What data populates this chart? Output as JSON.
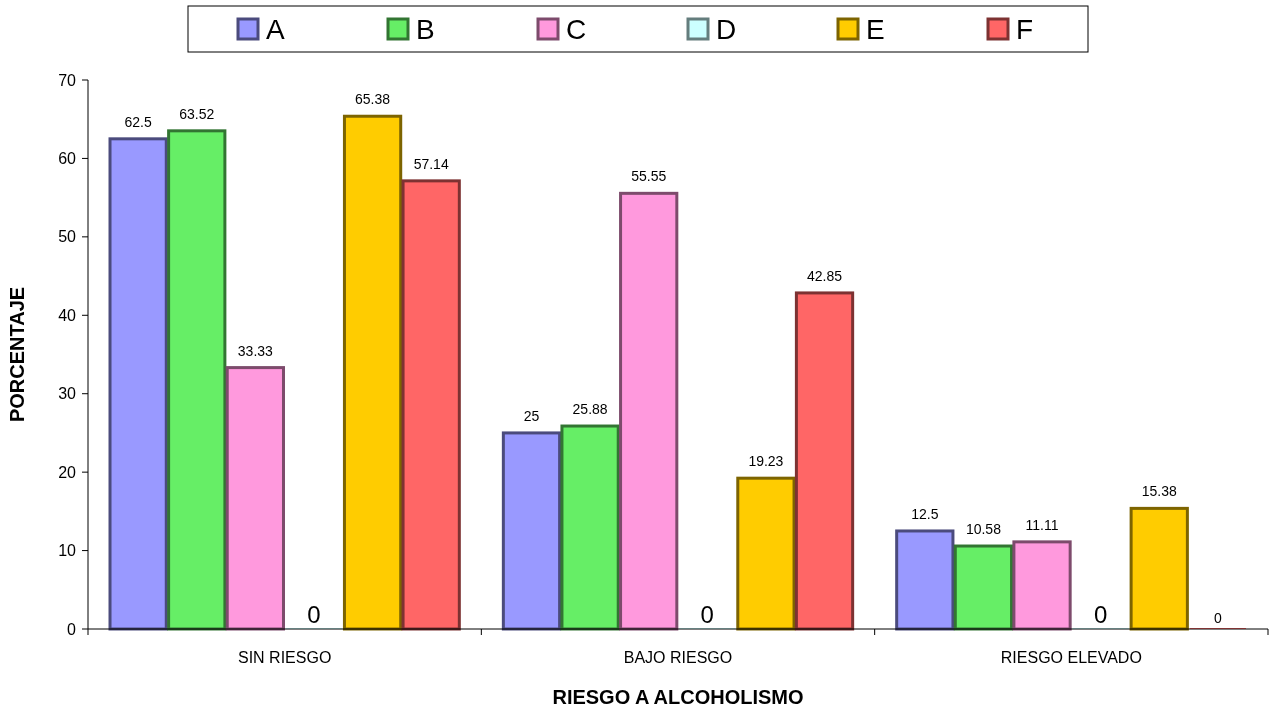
{
  "chart_data": {
    "type": "bar",
    "xlabel": "RIESGO A ALCOHOLISMO",
    "ylabel": "PORCENTAJE",
    "categories": [
      "SIN RIESGO",
      "BAJO RIESGO",
      "RIESGO ELEVADO"
    ],
    "series": [
      {
        "name": "A",
        "color": "#9999ff",
        "values": [
          62.5,
          25,
          12.5
        ]
      },
      {
        "name": "B",
        "color": "#66ee66",
        "values": [
          63.52,
          25.88,
          10.58
        ]
      },
      {
        "name": "C",
        "color": "#ff99dd",
        "values": [
          33.33,
          55.55,
          11.11
        ]
      },
      {
        "name": "D",
        "color": "#ccffff",
        "values": [
          0,
          0,
          0
        ]
      },
      {
        "name": "E",
        "color": "#ffcc00",
        "values": [
          65.38,
          19.23,
          15.38
        ]
      },
      {
        "name": "F",
        "color": "#ff6666",
        "values": [
          57.14,
          42.85,
          0
        ]
      }
    ],
    "ylim": [
      0,
      70
    ],
    "yticks": [
      0,
      10,
      20,
      30,
      40,
      50,
      60,
      70
    ],
    "data_labels": true,
    "legend": "top",
    "grid": false
  }
}
